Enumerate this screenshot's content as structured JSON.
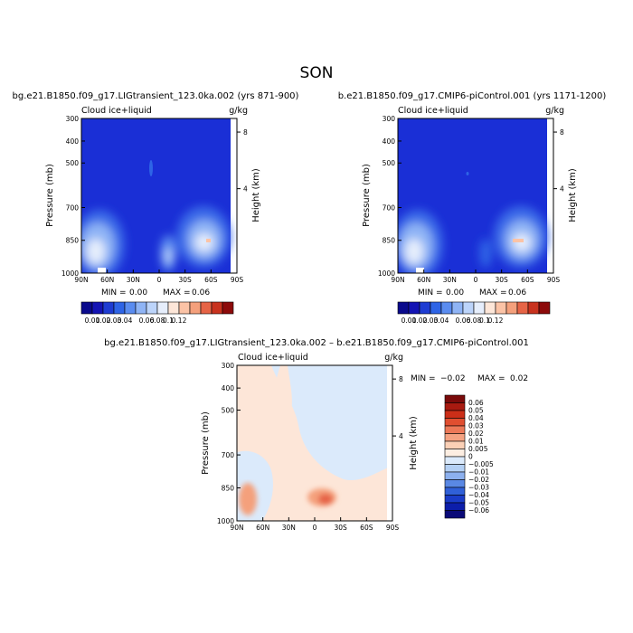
{
  "page": {
    "season": "SON"
  },
  "colors": {
    "background_field": "#1a2fd6",
    "cb_top": [
      "#0a0a8c",
      "#1414b4",
      "#1e3cd2",
      "#2e64e6",
      "#5a8cf0",
      "#8fb4f5",
      "#bcd4fa",
      "#e6eefc",
      "#fde6d8",
      "#fbc3a6",
      "#f4a07c",
      "#e66446",
      "#c8321e",
      "#8c0a0a"
    ],
    "cb_diff": [
      "#7a0a0a",
      "#a81a10",
      "#cc2e18",
      "#e04e30",
      "#ec7858",
      "#f4a282",
      "#fbd0b6",
      "#fdeee2",
      "#dbeafb",
      "#b4d0f4",
      "#8cb0ee",
      "#5a88e4",
      "#3060d8",
      "#1a3cc8",
      "#0c1eaa",
      "#0a0a78"
    ]
  },
  "chart_data": [
    {
      "type": "heatmap",
      "title": "bg.e21.B1850.f09_g17.LIGtransient_123.0ka.002 (yrs 871-900)",
      "variable_label": "Cloud ice+liquid",
      "units_label": "g/kg",
      "ylabel": "Pressure (mb)",
      "ylabel_right": "Height (km)",
      "x_ticks": [
        "90N",
        "60N",
        "30N",
        "0",
        "30S",
        "60S",
        "90S"
      ],
      "y_ticks": [
        "300",
        "400",
        "500",
        "700",
        "850",
        "1000"
      ],
      "y_ticks_right": [
        "8",
        "4"
      ],
      "ylim": [
        1000,
        300
      ],
      "stats": {
        "min_label": "MIN =",
        "min": "0.00",
        "max_label": "MAX =",
        "max": "0.06"
      },
      "colorbar_labels": [
        "0.01",
        "0.02",
        "0.03",
        "0.04",
        "0.06",
        "0.08",
        "0.1",
        "0.12"
      ]
    },
    {
      "type": "heatmap",
      "title": "b.e21.B1850.f09_g17.CMIP6-piControl.001 (yrs 1171-1200)",
      "variable_label": "Cloud ice+liquid",
      "units_label": "g/kg",
      "ylabel": "Pressure (mb)",
      "ylabel_right": "Height (km)",
      "x_ticks": [
        "90N",
        "60N",
        "30N",
        "0",
        "30S",
        "60S",
        "90S"
      ],
      "y_ticks": [
        "300",
        "400",
        "500",
        "700",
        "850",
        "1000"
      ],
      "y_ticks_right": [
        "8",
        "4"
      ],
      "ylim": [
        1000,
        300
      ],
      "stats": {
        "min_label": "MIN =",
        "min": "0.00",
        "max_label": "MAX =",
        "max": "0.06"
      },
      "colorbar_labels": [
        "0.01",
        "0.02",
        "0.03",
        "0.04",
        "0.06",
        "0.08",
        "0.1",
        "0.12"
      ]
    },
    {
      "type": "heatmap",
      "title": "bg.e21.B1850.f09_g17.LIGtransient_123.0ka.002 – b.e21.B1850.f09_g17.CMIP6-piControl.001",
      "variable_label": "Cloud ice+liquid",
      "units_label": "g/kg",
      "ylabel": "Pressure (mb)",
      "ylabel_right": "Height (km)",
      "x_ticks": [
        "90N",
        "60N",
        "30N",
        "0",
        "30S",
        "60S",
        "90S"
      ],
      "y_ticks": [
        "300",
        "400",
        "500",
        "700",
        "850",
        "1000"
      ],
      "y_ticks_right": [
        "8",
        "4"
      ],
      "ylim": [
        1000,
        300
      ],
      "stats": {
        "min_label": "MIN =",
        "min": "−0.02",
        "max_label": "MAX =",
        "max": "0.02"
      },
      "colorbar_labels": [
        "0.06",
        "0.05",
        "0.04",
        "0.03",
        "0.02",
        "0.01",
        "0.005",
        "0",
        "−0.005",
        "−0.01",
        "−0.02",
        "−0.03",
        "−0.04",
        "−0.05",
        "−0.06"
      ]
    }
  ]
}
